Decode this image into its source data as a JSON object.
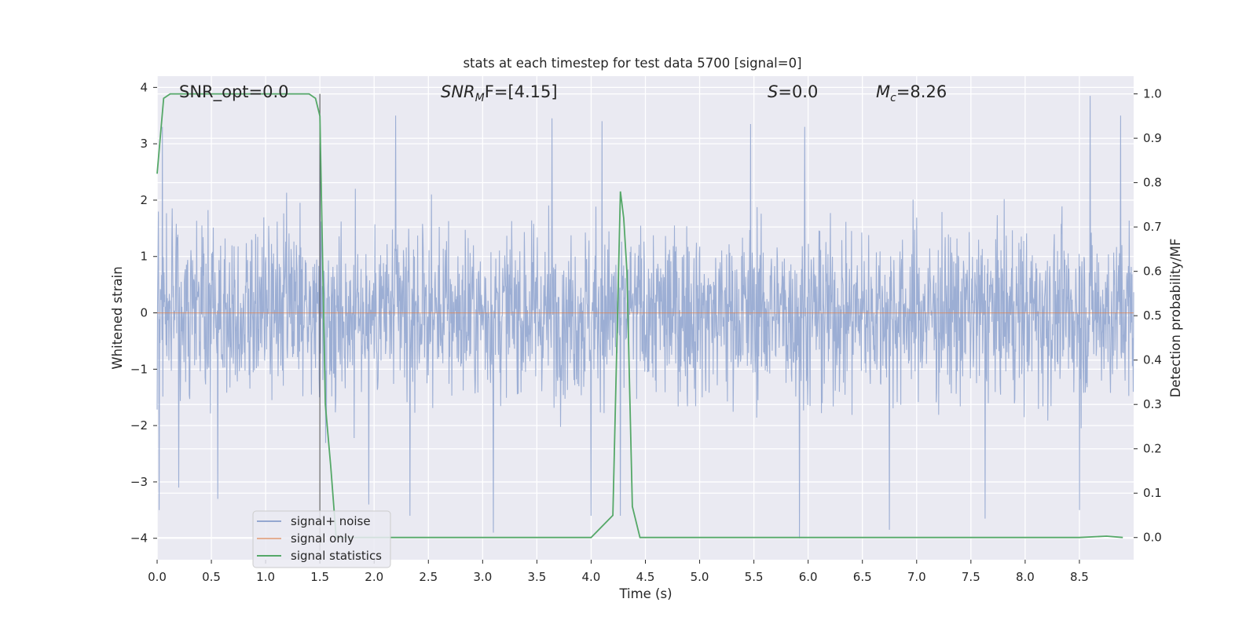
{
  "chart_data": {
    "type": "line",
    "title": "stats at each timestep for test data 5700 [signal=0]",
    "xlabel": "Time (s)",
    "ylabel_left": "Whitened strain",
    "ylabel_right": "Detection probability/MF",
    "xlim": [
      0,
      9
    ],
    "ylim_left": [
      -4.38,
      4.2
    ],
    "ylim_right": [
      -0.05,
      1.04
    ],
    "x_ticks": [
      "0.0",
      "0.5",
      "1.0",
      "1.5",
      "2.0",
      "2.5",
      "3.0",
      "3.5",
      "4.0",
      "4.5",
      "5.0",
      "5.5",
      "6.0",
      "6.5",
      "7.0",
      "7.5",
      "8.0",
      "8.5"
    ],
    "y_ticks_left": [
      "4",
      "3",
      "2",
      "1",
      "0",
      "−1",
      "−2",
      "−3",
      "−4"
    ],
    "y_ticks_right": [
      "1.0",
      "0.9",
      "0.8",
      "0.7",
      "0.6",
      "0.5",
      "0.4",
      "0.3",
      "0.2",
      "0.1",
      "0.0"
    ],
    "grid": true,
    "legend_position": "lower-left",
    "annotations": [
      {
        "text": "SNR_opt=0.0"
      },
      {
        "text": "SNR_MF=[4.15]",
        "base": "SNR",
        "sub": "M",
        "after": "F=[4.15]"
      },
      {
        "text": "S=0.0",
        "base": "S",
        "after": "=0.0"
      },
      {
        "text": "M_c=8.26",
        "base": "M",
        "sub": "c",
        "after": "=8.26"
      }
    ],
    "marker_line_x": 1.5,
    "series": [
      {
        "name": "signal+ noise",
        "color": "#94a7d0",
        "axis": "left",
        "description_range": [
          -4.0,
          3.8
        ],
        "peaks": [
          {
            "x": 0.02,
            "y": -3.5
          },
          {
            "x": 0.05,
            "y": 3.3
          },
          {
            "x": 0.2,
            "y": -3.1
          },
          {
            "x": 0.56,
            "y": -3.3
          },
          {
            "x": 1.5,
            "y": 3.0
          },
          {
            "x": 1.95,
            "y": -3.4
          },
          {
            "x": 2.2,
            "y": 3.5
          },
          {
            "x": 2.33,
            "y": -3.6
          },
          {
            "x": 3.1,
            "y": -3.9
          },
          {
            "x": 3.64,
            "y": 3.45
          },
          {
            "x": 4.0,
            "y": -3.6
          },
          {
            "x": 4.1,
            "y": 3.4
          },
          {
            "x": 4.27,
            "y": -3.6
          },
          {
            "x": 5.47,
            "y": 3.35
          },
          {
            "x": 5.92,
            "y": -4.0
          },
          {
            "x": 5.97,
            "y": 3.3
          },
          {
            "x": 6.75,
            "y": -3.85
          },
          {
            "x": 7.63,
            "y": -3.65
          },
          {
            "x": 8.5,
            "y": -3.5
          },
          {
            "x": 8.6,
            "y": 3.85
          },
          {
            "x": 8.88,
            "y": 3.5
          }
        ]
      },
      {
        "name": "signal only",
        "color": "#dd8452",
        "axis": "left",
        "x": [
          0,
          9
        ],
        "y": [
          0,
          0
        ]
      },
      {
        "name": "signal statistics",
        "color": "#55a868",
        "axis": "right",
        "x": [
          0.0,
          0.06,
          0.12,
          0.2,
          1.0,
          1.2,
          1.4,
          1.46,
          1.5,
          1.55,
          1.6,
          1.65,
          1.75,
          4.0,
          4.2,
          4.27,
          4.3,
          4.33,
          4.38,
          4.45,
          8.5,
          8.75,
          8.9
        ],
        "y": [
          0.82,
          0.99,
          1.0,
          1.0,
          1.0,
          1.0,
          1.0,
          0.99,
          0.95,
          0.3,
          0.16,
          0.0,
          0.0,
          0.0,
          0.05,
          0.78,
          0.72,
          0.6,
          0.07,
          0.0,
          0.0,
          0.003,
          0.0
        ]
      }
    ]
  }
}
